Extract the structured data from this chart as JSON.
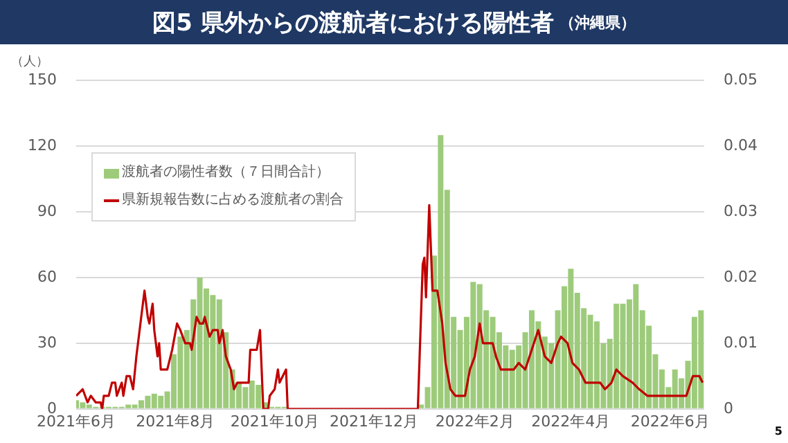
{
  "chart_data": {
    "type": "bar",
    "title": "図5 県外からの渡航者における陽性者",
    "subtitle": "（沖縄県）",
    "ylabel": "（人）",
    "annotations": [
      "5"
    ],
    "xlim": [
      "2021-06-01",
      "2022-06-22"
    ],
    "xticks": [
      {
        "value": "2021-06-01",
        "label": "2021年6月"
      },
      {
        "value": "2021-08-01",
        "label": "2021年8月"
      },
      {
        "value": "2021-10-01",
        "label": "2021年10月"
      },
      {
        "value": "2021-12-01",
        "label": "2021年12月"
      },
      {
        "value": "2022-02-01",
        "label": "2022年2月"
      },
      {
        "value": "2022-04-01",
        "label": "2022年4月"
      },
      {
        "value": "2022-06-01",
        "label": "2022年6月"
      }
    ],
    "ylim": [
      0,
      150
    ],
    "yticks": [
      0,
      30,
      60,
      90,
      120,
      150
    ],
    "y2lim": [
      0,
      0.05
    ],
    "y2ticks": [
      0,
      0.01,
      0.02,
      0.03,
      0.04,
      0.05
    ],
    "grid": "y",
    "legend": "top left",
    "series": [
      {
        "name": "渡航者の陽性者数（７日間合計）",
        "color": "#9dcb7b",
        "x": [
          "2021-06-01",
          "2021-06-05",
          "2021-06-09",
          "2021-06-13",
          "2021-06-17",
          "2021-06-21",
          "2021-06-25",
          "2021-06-29",
          "2021-07-03",
          "2021-07-07",
          "2021-07-11",
          "2021-07-15",
          "2021-07-19",
          "2021-07-23",
          "2021-07-27",
          "2021-07-31",
          "2021-08-04",
          "2021-08-08",
          "2021-08-12",
          "2021-08-16",
          "2021-08-20",
          "2021-08-24",
          "2021-08-28",
          "2021-09-01",
          "2021-09-05",
          "2021-09-09",
          "2021-09-13",
          "2021-09-17",
          "2021-09-21",
          "2021-09-25",
          "2021-09-29",
          "2021-10-03",
          "2021-10-07",
          "2021-12-30",
          "2022-01-03",
          "2022-01-07",
          "2022-01-11",
          "2022-01-15",
          "2022-01-19",
          "2022-01-23",
          "2022-01-27",
          "2022-01-31",
          "2022-02-04",
          "2022-02-08",
          "2022-02-12",
          "2022-02-16",
          "2022-02-20",
          "2022-02-24",
          "2022-02-28",
          "2022-03-04",
          "2022-03-08",
          "2022-03-12",
          "2022-03-16",
          "2022-03-20",
          "2022-03-24",
          "2022-03-28",
          "2022-04-01",
          "2022-04-05",
          "2022-04-09",
          "2022-04-13",
          "2022-04-17",
          "2022-04-21",
          "2022-04-25",
          "2022-04-29",
          "2022-05-03",
          "2022-05-07",
          "2022-05-11",
          "2022-05-15",
          "2022-05-19",
          "2022-05-23",
          "2022-05-27",
          "2022-05-31",
          "2022-06-04",
          "2022-06-08",
          "2022-06-12",
          "2022-06-16",
          "2022-06-20"
        ],
        "values": [
          4,
          3,
          2,
          1,
          1,
          1,
          1,
          1,
          2,
          2,
          4,
          6,
          7,
          6,
          8,
          25,
          33,
          36,
          50,
          60,
          55,
          52,
          50,
          35,
          18,
          12,
          10,
          13,
          11,
          3,
          1,
          1,
          1,
          2,
          10,
          70,
          125,
          100,
          42,
          36,
          42,
          58,
          57,
          45,
          42,
          35,
          29,
          27,
          29,
          35,
          45,
          40,
          33,
          30,
          45,
          56,
          64,
          53,
          46,
          43,
          40,
          30,
          32,
          48,
          48,
          50,
          57,
          45,
          38,
          25,
          18,
          10,
          18,
          14,
          22,
          42,
          45
        ]
      },
      {
        "name": "県新規報告数に占める渡航者の割合",
        "type": "line",
        "axis": "y2",
        "color": "#c00000",
        "x": [
          "2021-06-01",
          "2021-06-05",
          "2021-06-08",
          "2021-06-10",
          "2021-06-13",
          "2021-06-16",
          "2021-06-17",
          "2021-06-18",
          "2021-06-21",
          "2021-06-23",
          "2021-06-25",
          "2021-06-26",
          "2021-06-29",
          "2021-06-30",
          "2021-07-02",
          "2021-07-04",
          "2021-07-06",
          "2021-07-08",
          "2021-07-10",
          "2021-07-13",
          "2021-07-15",
          "2021-07-16",
          "2021-07-18",
          "2021-07-19",
          "2021-07-21",
          "2021-07-22",
          "2021-07-23",
          "2021-07-25",
          "2021-07-27",
          "2021-07-30",
          "2021-08-02",
          "2021-08-04",
          "2021-08-07",
          "2021-08-10",
          "2021-08-11",
          "2021-08-14",
          "2021-08-16",
          "2021-08-18",
          "2021-08-19",
          "2021-08-22",
          "2021-08-24",
          "2021-08-27",
          "2021-08-28",
          "2021-08-30",
          "2021-09-01",
          "2021-09-04",
          "2021-09-06",
          "2021-09-08",
          "2021-09-11",
          "2021-09-13",
          "2021-09-15",
          "2021-09-16",
          "2021-09-19",
          "2021-09-20",
          "2021-09-22",
          "2021-09-24",
          "2021-09-27",
          "2021-09-28",
          "2021-10-01",
          "2021-10-03",
          "2021-10-04",
          "2021-10-06",
          "2021-10-08",
          "2021-10-09",
          "2021-12-28",
          "2021-12-31",
          "2022-01-01",
          "2022-01-02",
          "2022-01-04",
          "2022-01-06",
          "2022-01-09",
          "2022-01-12",
          "2022-01-14",
          "2022-01-17",
          "2022-01-20",
          "2022-01-24",
          "2022-01-26",
          "2022-01-29",
          "2022-02-01",
          "2022-02-04",
          "2022-02-06",
          "2022-02-09",
          "2022-02-12",
          "2022-02-14",
          "2022-02-17",
          "2022-02-21",
          "2022-02-25",
          "2022-02-28",
          "2022-03-04",
          "2022-03-08",
          "2022-03-12",
          "2022-03-16",
          "2022-03-20",
          "2022-03-24",
          "2022-03-26",
          "2022-03-30",
          "2022-04-02",
          "2022-04-06",
          "2022-04-10",
          "2022-04-15",
          "2022-04-19",
          "2022-04-22",
          "2022-04-26",
          "2022-04-29",
          "2022-05-03",
          "2022-05-09",
          "2022-05-13",
          "2022-05-18",
          "2022-05-23",
          "2022-05-30",
          "2022-06-01",
          "2022-06-05",
          "2022-06-08",
          "2022-06-11",
          "2022-06-15",
          "2022-06-19",
          "2022-06-21"
        ],
        "values": [
          0.002,
          0.003,
          0.001,
          0.002,
          0.001,
          0.001,
          0,
          0.002,
          0.002,
          0.004,
          0.004,
          0.002,
          0.004,
          0.002,
          0.005,
          0.005,
          0.003,
          0.008,
          0.012,
          0.018,
          0.014,
          0.013,
          0.016,
          0.012,
          0.008,
          0.01,
          0.006,
          0.006,
          0.006,
          0.009,
          0.013,
          0.012,
          0.01,
          0.01,
          0.009,
          0.014,
          0.013,
          0.013,
          0.014,
          0.011,
          0.012,
          0.012,
          0.01,
          0.012,
          0.008,
          0.006,
          0.003,
          0.004,
          0.004,
          0.004,
          0.004,
          0.009,
          0.009,
          0.009,
          0.012,
          0,
          0,
          0.002,
          0.003,
          0.006,
          0.004,
          0.005,
          0.006,
          0,
          0,
          0.022,
          0.023,
          0.017,
          0.031,
          0.018,
          0.018,
          0.013,
          0.007,
          0.003,
          0.002,
          0.002,
          0.002,
          0.006,
          0.008,
          0.013,
          0.01,
          0.01,
          0.01,
          0.008,
          0.006,
          0.006,
          0.006,
          0.007,
          0.006,
          0.009,
          0.012,
          0.008,
          0.007,
          0.01,
          0.011,
          0.01,
          0.007,
          0.006,
          0.004,
          0.004,
          0.004,
          0.003,
          0.004,
          0.006,
          0.005,
          0.004,
          0.003,
          0.002,
          0.002,
          0.002,
          0.002,
          0.002,
          0.002,
          0.002,
          0.005,
          0.005,
          0.004
        ]
      }
    ]
  }
}
